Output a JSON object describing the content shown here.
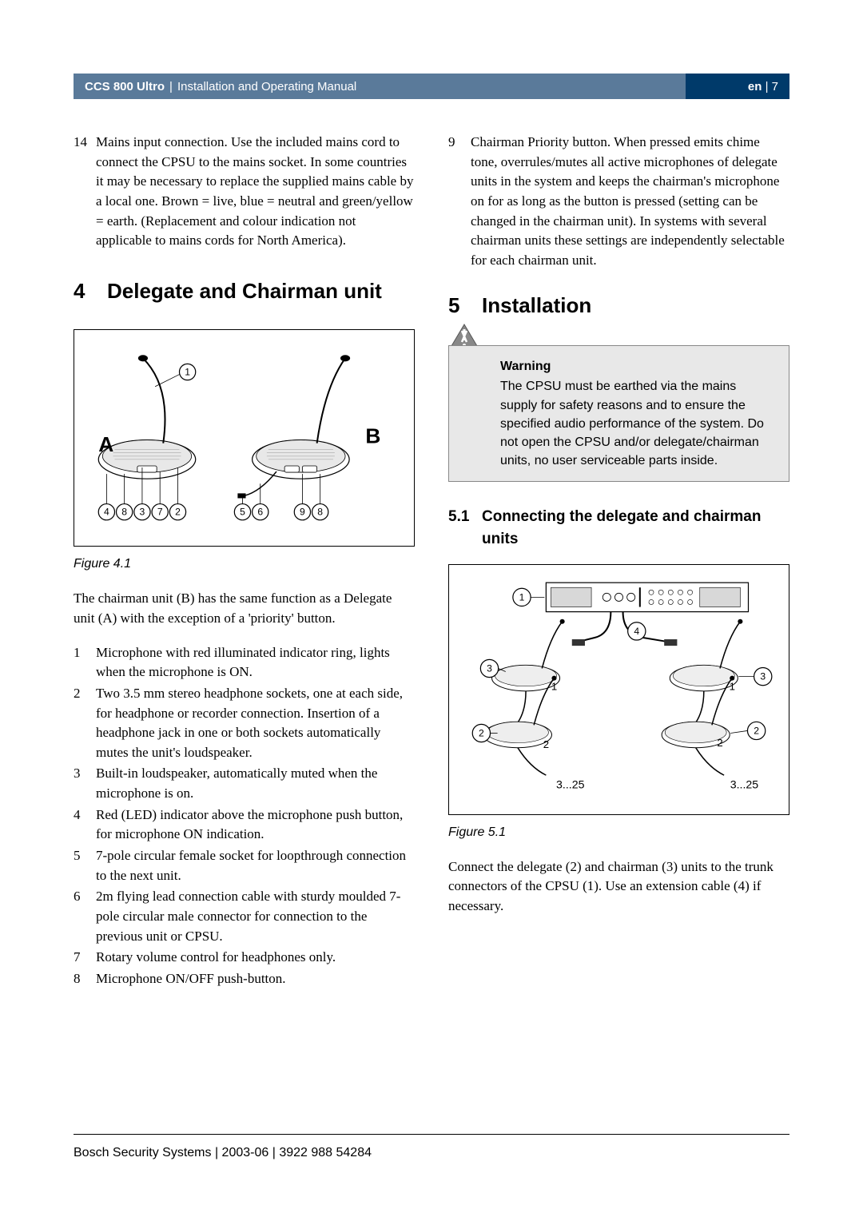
{
  "header": {
    "product": "CCS 800 Ultro",
    "doc_title": "Installation and Operating Manual",
    "lang": "en",
    "page_num": "7"
  },
  "col_left": {
    "item14_num": "14",
    "item14_text": "Mains input connection. Use the included mains cord to connect the CPSU to the mains socket. In some countries it may be necessary to replace the supplied mains cable by a local one. Brown = live, blue = neutral and green/yellow = earth. (Replacement and colour indication not applicable to mains cords for North America).",
    "section4_num": "4",
    "section4_title": "Delegate and Chairman unit",
    "fig4_caption": "Figure 4.1",
    "fig4": {
      "labels": {
        "A": "A",
        "B": "B"
      },
      "callouts": [
        "1",
        "2",
        "3",
        "4",
        "5",
        "6",
        "7",
        "8",
        "9"
      ]
    },
    "para_intro": "The chairman unit (B) has the same function as a Delegate unit (A) with the exception of a 'priority' button.",
    "items": [
      {
        "n": "1",
        "t": "Microphone with red illuminated indicator ring, lights when the microphone is ON."
      },
      {
        "n": "2",
        "t": "Two 3.5 mm stereo headphone sockets, one at each side, for headphone or recorder connection. Insertion of a headphone jack in one or both sockets automatically mutes the unit's loudspeaker."
      },
      {
        "n": "3",
        "t": "Built-in loudspeaker, automatically muted when the microphone is on."
      },
      {
        "n": "4",
        "t": "Red (LED) indicator above the microphone push button, for microphone ON indication."
      },
      {
        "n": "5",
        "t": "7-pole circular female socket for loopthrough connection to the next unit."
      },
      {
        "n": "6",
        "t": "2m flying lead connection cable with sturdy moulded 7-pole circular male connector for connection to the previous unit or CPSU."
      },
      {
        "n": "7",
        "t": "Rotary volume control for headphones only."
      },
      {
        "n": "8",
        "t": "Microphone ON/OFF push-button."
      }
    ]
  },
  "col_right": {
    "item9_num": "9",
    "item9_text": "Chairman Priority button. When pressed emits chime tone, overrules/mutes all active microphones of delegate units in the system and keeps the chairman's microphone on for as long as the button is pressed (setting can be changed in the chairman unit). In systems with several chairman units these settings are independently selectable for each chairman unit.",
    "section5_num": "5",
    "section5_title": "Installation",
    "warning_title": "Warning",
    "warning_text": "The CPSU must be earthed via the mains supply for safety reasons and to ensure the specified audio performance of the system. Do not open the CPSU and/or delegate/chairman units, no user serviceable parts inside.",
    "sub51_num": "5.1",
    "sub51_title": "Connecting the delegate and chairman units",
    "fig5_caption": "Figure 5.1",
    "fig5": {
      "callouts": [
        "1",
        "2",
        "3",
        "4"
      ],
      "chain_labels": [
        "1",
        "2",
        "3...25",
        "1",
        "2",
        "3...25"
      ]
    },
    "para_connect": "Connect the delegate (2) and chairman (3) units to the trunk connectors of the CPSU (1). Use an extension cable (4) if necessary."
  },
  "footer": "Bosch Security Systems | 2003-06 | 3922 988 54284",
  "colors": {
    "header_left_bg": "#5a7a9a",
    "header_right_bg": "#003a6a",
    "warning_bg": "#e8e8e8"
  }
}
